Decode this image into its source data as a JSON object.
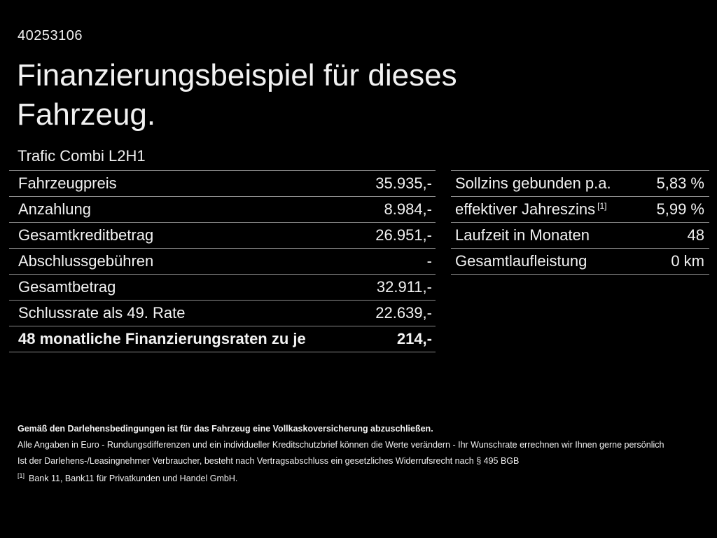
{
  "colors": {
    "background": "#000000",
    "text": "#f2f2f2",
    "divider": "#8b8b8b"
  },
  "doc_id": "40253106",
  "title": "Finanzierungsbeispiel für dieses Fahrzeug.",
  "vehicle_model": "Trafic Combi L2H1",
  "financing_table": {
    "rows": [
      {
        "label": "Fahrzeugpreis",
        "value": "35.935,-"
      },
      {
        "label": "Anzahlung",
        "value": "8.984,-"
      },
      {
        "label": "Gesamtkreditbetrag",
        "value": "26.951,-"
      },
      {
        "label": "Abschlussgebühren",
        "value": "-"
      },
      {
        "label": "Gesamtbetrag",
        "value": "32.911,-"
      },
      {
        "label": "Schlussrate als 49. Rate",
        "value": "22.639,-"
      },
      {
        "label": "48 monatliche Finanzierungsraten zu je",
        "value": "214,-"
      }
    ]
  },
  "conditions_table": {
    "rows": [
      {
        "label": "Sollzins gebunden p.a.",
        "sup": "",
        "value": "5,83 %"
      },
      {
        "label": "effektiver Jahreszins",
        "sup": "[1]",
        "value": "5,99 %"
      },
      {
        "label": "Laufzeit in Monaten",
        "sup": "",
        "value": "48"
      },
      {
        "label": "Gesamtlaufleistung",
        "sup": "",
        "value": "0 km"
      }
    ]
  },
  "footnotes": {
    "line1": "Gemäß den Darlehensbedingungen ist für das Fahrzeug eine Vollkaskoversicherung abzuschließen.",
    "line2": "Alle Angaben in Euro - Rundungsdifferenzen und ein individueller Kreditschutzbrief können die Werte verändern - Ihr Wunschrate errechnen wir Ihnen gerne persönlich",
    "line3": "Ist der Darlehens-/Leasingnehmer Verbraucher, besteht nach Vertragsabschluss ein gesetzliches Widerrufsrecht nach § 495 BGB",
    "line4_marker": "[1]",
    "line4": "Bank 11, Bank11 für Privatkunden und Handel GmbH."
  }
}
